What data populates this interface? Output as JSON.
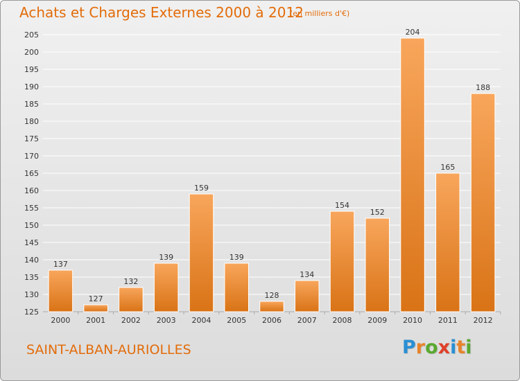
{
  "header": {
    "title": "Achats et Charges Externes 2000 à 2012",
    "subtitle": "(en milliers d'€)"
  },
  "footer": {
    "commune": "SAINT-ALBAN-AURIOLLES",
    "logo_letters": [
      "P",
      "r",
      "o",
      "x",
      "i",
      "t",
      "i"
    ],
    "logo_colors": [
      "#2a8fd4",
      "#e8842a",
      "#5aa830",
      "#e0402a",
      "#2a8fd4",
      "#e8842a",
      "#5aa830"
    ]
  },
  "colors": {
    "bar_light": "#f8a65c",
    "bar_dark": "#d97316",
    "accent": "#e36c0a",
    "grid": "#ffffff",
    "text": "#333333"
  },
  "chart_data": {
    "type": "bar",
    "categories": [
      "2000",
      "2001",
      "2002",
      "2003",
      "2004",
      "2005",
      "2006",
      "2007",
      "2008",
      "2009",
      "2010",
      "2011",
      "2012"
    ],
    "values": [
      137,
      127,
      132,
      139,
      159,
      139,
      128,
      134,
      154,
      152,
      204,
      165,
      188
    ],
    "ylim": [
      125,
      205
    ],
    "ytick_step": 5,
    "grid": true
  }
}
